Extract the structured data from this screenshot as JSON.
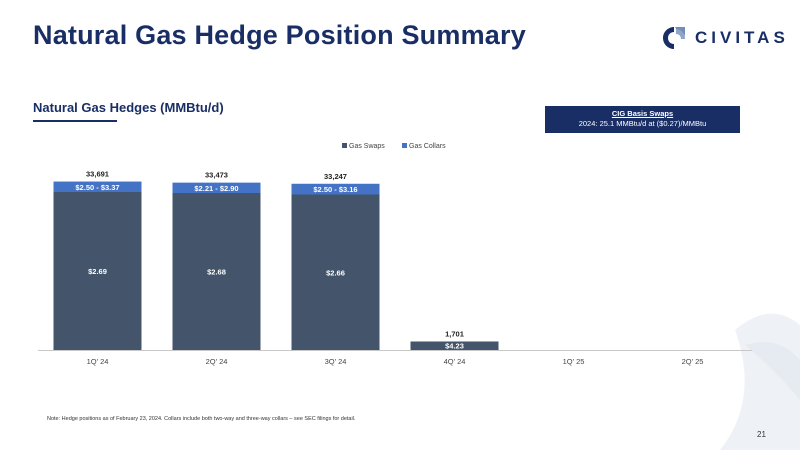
{
  "slide": {
    "title": "Natural Gas Hedge Position Summary",
    "logo_text": "CIVITAS",
    "section_title": "Natural Gas Hedges (MMBtu/d)",
    "callout_title": "CIG Basis Swaps",
    "callout_text": "2024: 25.1 MMBtu/d at ($0.27)/MMBtu",
    "footnote": "Note: Hedge positions as of February 23, 2024. Collars include both two-way and three-way collars – see SEC filings for detail.",
    "page_number": "21"
  },
  "colors": {
    "title": "#1a2e66",
    "swaps": "#44546a",
    "collars": "#4472c4"
  },
  "chart_data": {
    "type": "bar",
    "stacked": true,
    "categories": [
      "1Q' 24",
      "2Q' 24",
      "3Q' 24",
      "4Q' 24",
      "1Q' 25",
      "2Q' 25"
    ],
    "series": [
      {
        "name": "Gas Swaps",
        "values": [
          31600,
          31400,
          31100,
          1701,
          0,
          0
        ],
        "labels": [
          "$2.69",
          "$2.68",
          "$2.66",
          "$4.23",
          "",
          ""
        ]
      },
      {
        "name": "Gas Collars",
        "values": [
          2091,
          2073,
          2147,
          0,
          0,
          0
        ],
        "labels": [
          "$2.50 - $3.37",
          "$2.21 - $2.90",
          "$2.50 - $3.16",
          "",
          "",
          ""
        ]
      }
    ],
    "totals": [
      "33,691",
      "33,473",
      "33,247",
      "1,701",
      "",
      ""
    ],
    "ylim": [
      0,
      36000
    ],
    "legend": "top-center",
    "grid": false
  }
}
